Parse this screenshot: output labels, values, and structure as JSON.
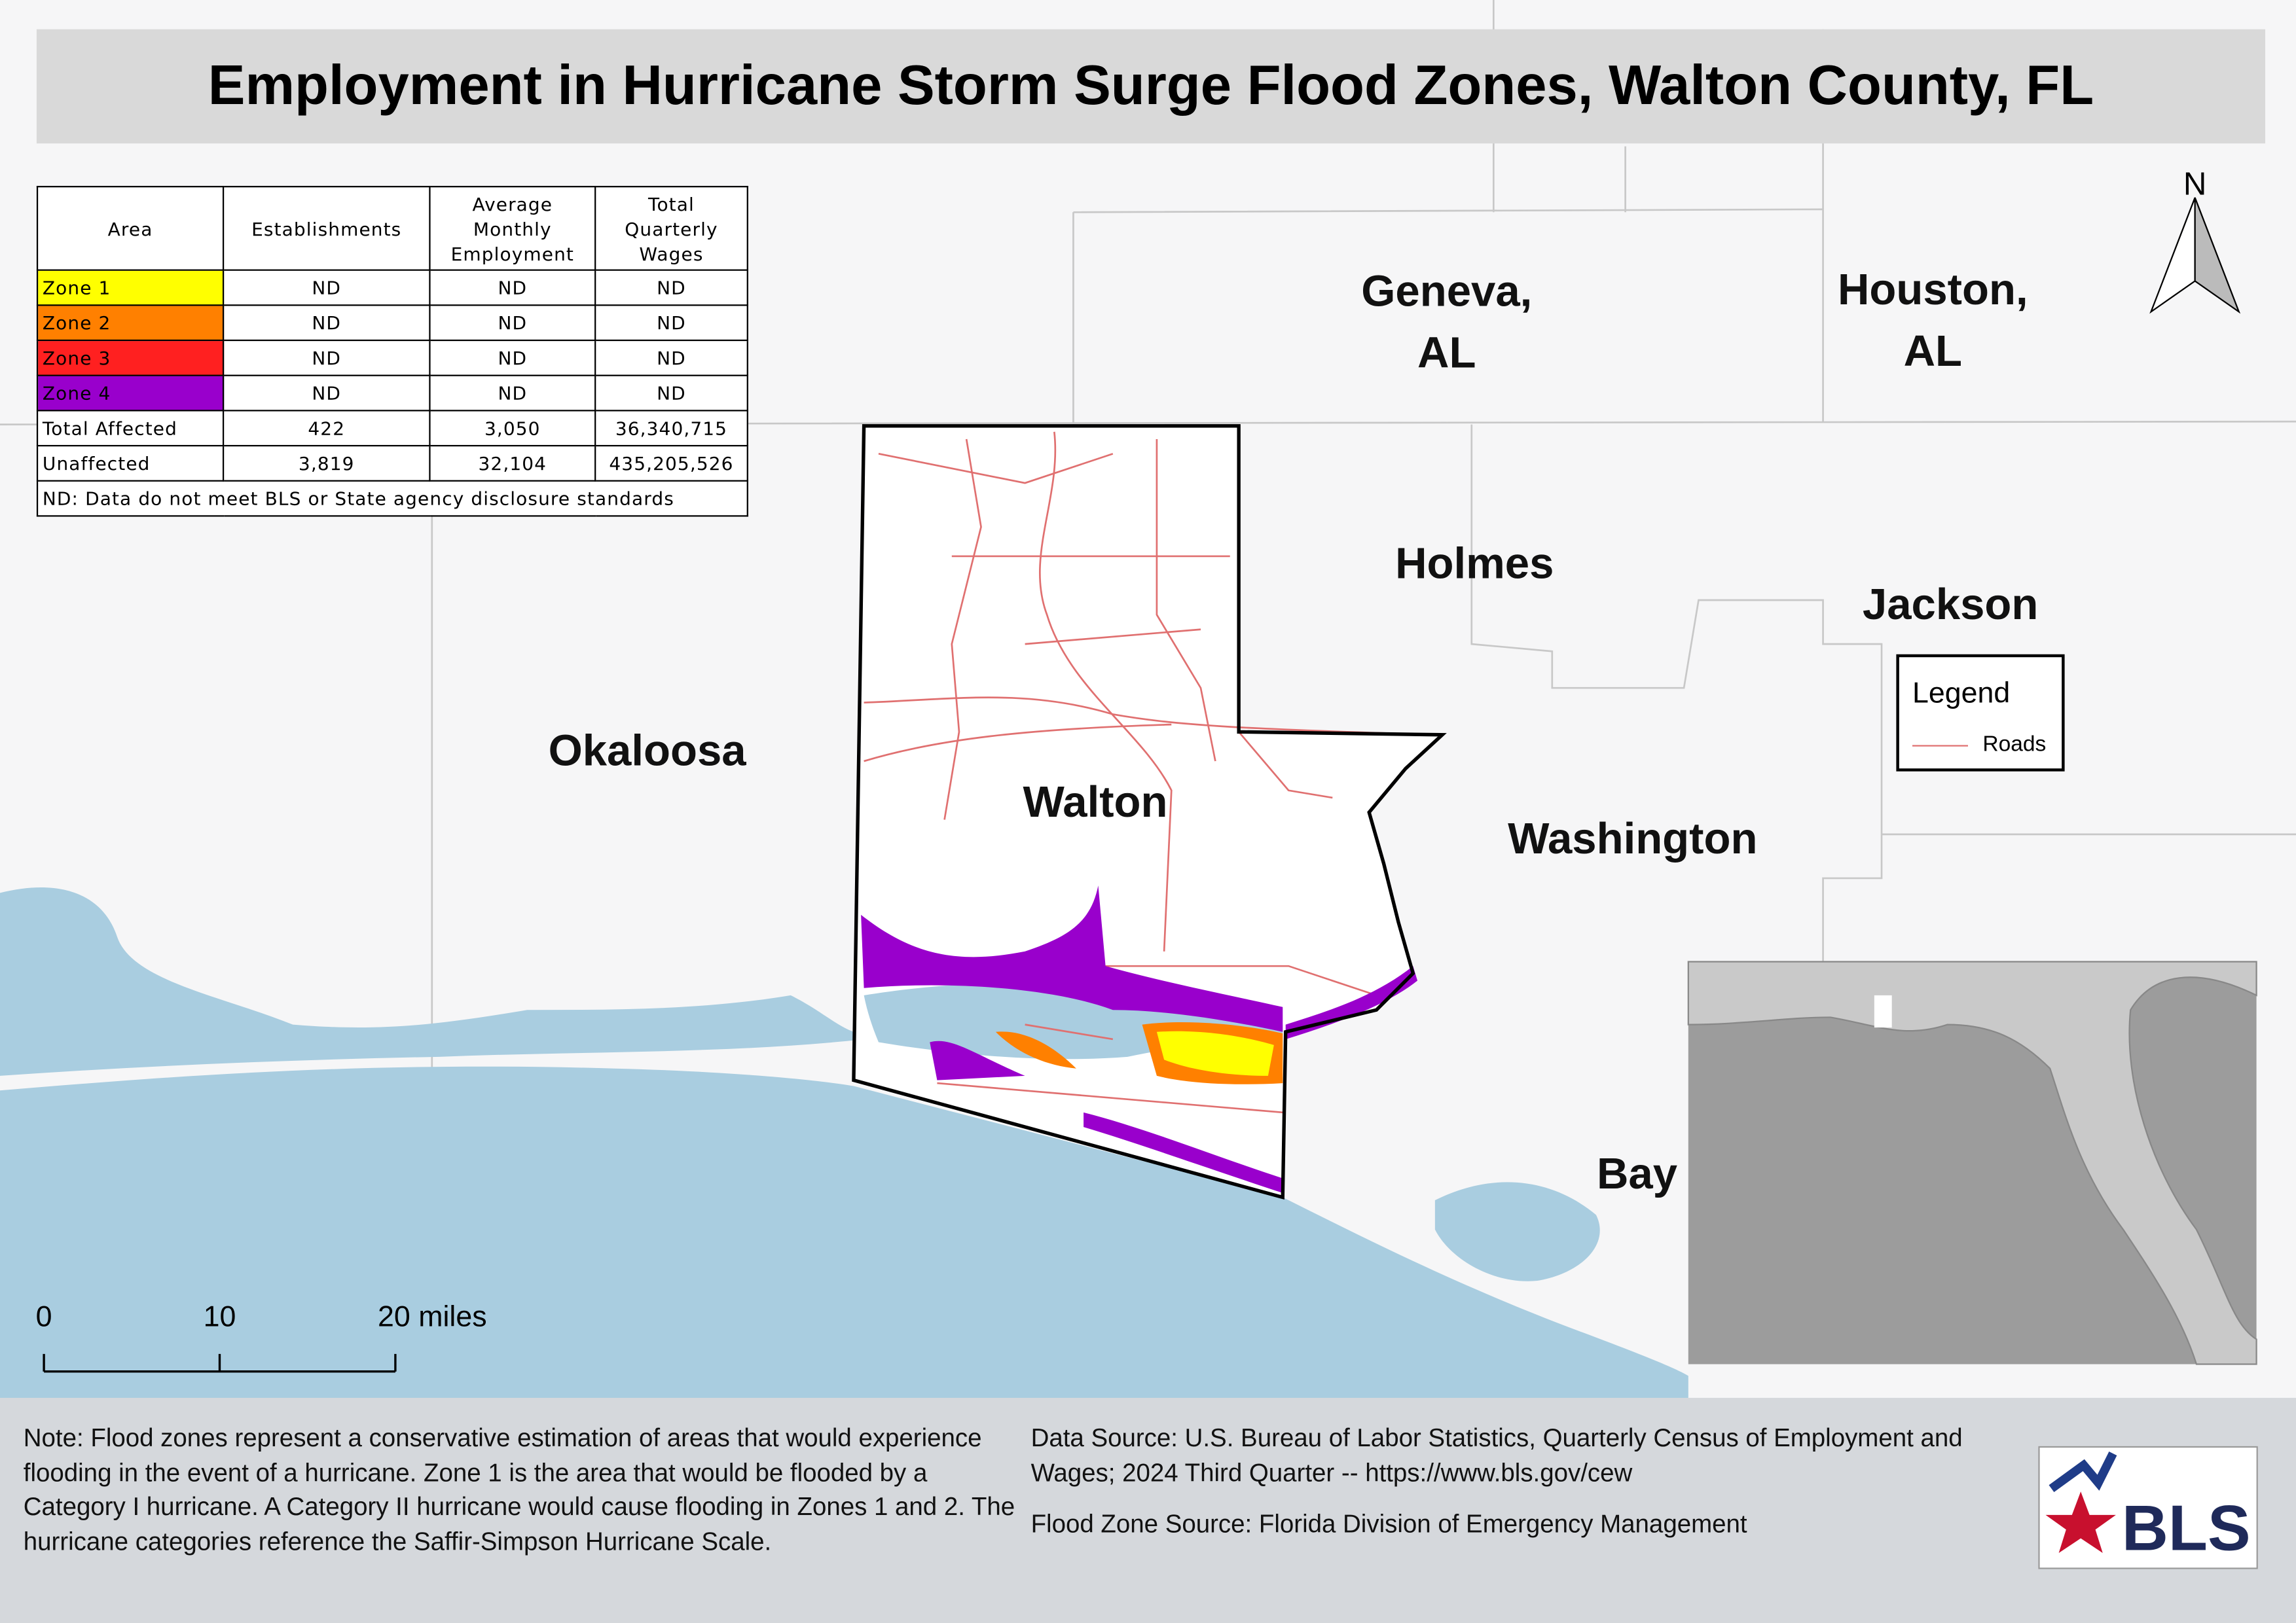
{
  "title": "Employment in Hurricane Storm Surge Flood Zones, Walton County, FL",
  "table": {
    "header": [
      "Area",
      "Establishments",
      "Average Monthly Employment",
      "Total Quarterly Wages"
    ],
    "rows": [
      [
        "Zone 1",
        "ND",
        "ND",
        "ND"
      ],
      [
        "Zone 2",
        "ND",
        "ND",
        "ND"
      ],
      [
        "Zone 3",
        "ND",
        "ND",
        "ND"
      ],
      [
        "Zone 4",
        "ND",
        "ND",
        "ND"
      ],
      [
        "Total Affected",
        "422",
        "3,050",
        "36,340,715"
      ],
      [
        "Unaffected",
        "3,819",
        "32,104",
        "435,205,526"
      ]
    ],
    "zone_colors": [
      "#ffff00",
      "#ff8000",
      "#ff2020",
      "#9900cc"
    ],
    "note": "ND: Data do not meet BLS or State agency disclosure standards"
  },
  "places": [
    [
      "Geneva,",
      "AL"
    ],
    [
      "Houston,",
      "AL"
    ],
    [
      "Holmes"
    ],
    [
      "Jackson"
    ],
    [
      "Okaloosa"
    ],
    [
      "Walton"
    ],
    [
      "Washington"
    ],
    [
      "Bay"
    ]
  ],
  "legend": {
    "title": "Legend",
    "items": [
      "Roads"
    ]
  },
  "north": "N",
  "scale_bar": [
    "0",
    "10",
    "20 miles"
  ],
  "note": "Note: Flood zones represent a conservative estimation of areas that would experience flooding in the event of a hurricane. Zone 1 is the area that would be flooded by a Category I hurricane. A Category II hurricane would cause flooding in Zones 1 and 2. The hurricane categories reference the Saffir-Simpson Hurricane Scale.",
  "sources": [
    "Data Source: U.S. Bureau of Labor Statistics, Quarterly Census of Employment and Wages; 2024 Third Quarter -- https://www.bls.gov/cew",
    "Flood Zone Source: Florida Division of Emergency Management"
  ],
  "logo": "BLS"
}
